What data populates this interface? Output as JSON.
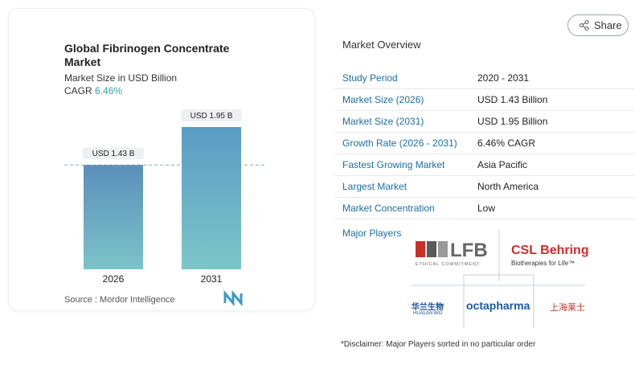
{
  "chart_data": {
    "type": "bar",
    "title": "Global Fibrinogen Concentrate Market",
    "subtitle": "Market Size in USD Billion",
    "cagr_label": "CAGR",
    "cagr": "6.46%",
    "source": "Source : Mordor Intelligence",
    "categories": [
      "2026",
      "2031"
    ],
    "values": [
      1.43,
      1.95
    ],
    "value_labels": [
      "USD 1.43 B",
      "USD 1.95 B"
    ],
    "colors": [
      [
        "#5b8fbb",
        "#7cc3c9"
      ],
      [
        "#5a9bc4",
        "#7cc6c9"
      ]
    ]
  },
  "share": "Share",
  "overview": {
    "title": "Market Overview",
    "rows": [
      [
        "Study Period",
        "2020 - 2031"
      ],
      [
        "Market Size (2026)",
        "USD 1.43 Billion"
      ],
      [
        "Market Size (2031)",
        "USD 1.95 Billion"
      ],
      [
        "Growth Rate (2026 - 2031)",
        "6.46% CAGR"
      ],
      [
        "Fastest Growing Market",
        "Asia Pacific"
      ],
      [
        "Largest Market",
        "North America"
      ],
      [
        "Market Concentration",
        "Low"
      ]
    ]
  },
  "players": {
    "title": "Major Players",
    "lfb": "LFB",
    "lfb_tag": "ETHICAL COMMITMENT",
    "csl": "CSL Behring",
    "csl_tag": "Biotherapies for Life™",
    "hualan": "华兰生物",
    "hualan_tag": "HUALAN BIO",
    "octa": "octapharma",
    "raas": "上海莱士"
  },
  "disclaimer": "*Disclaimer: Major Players sorted in no particular order"
}
